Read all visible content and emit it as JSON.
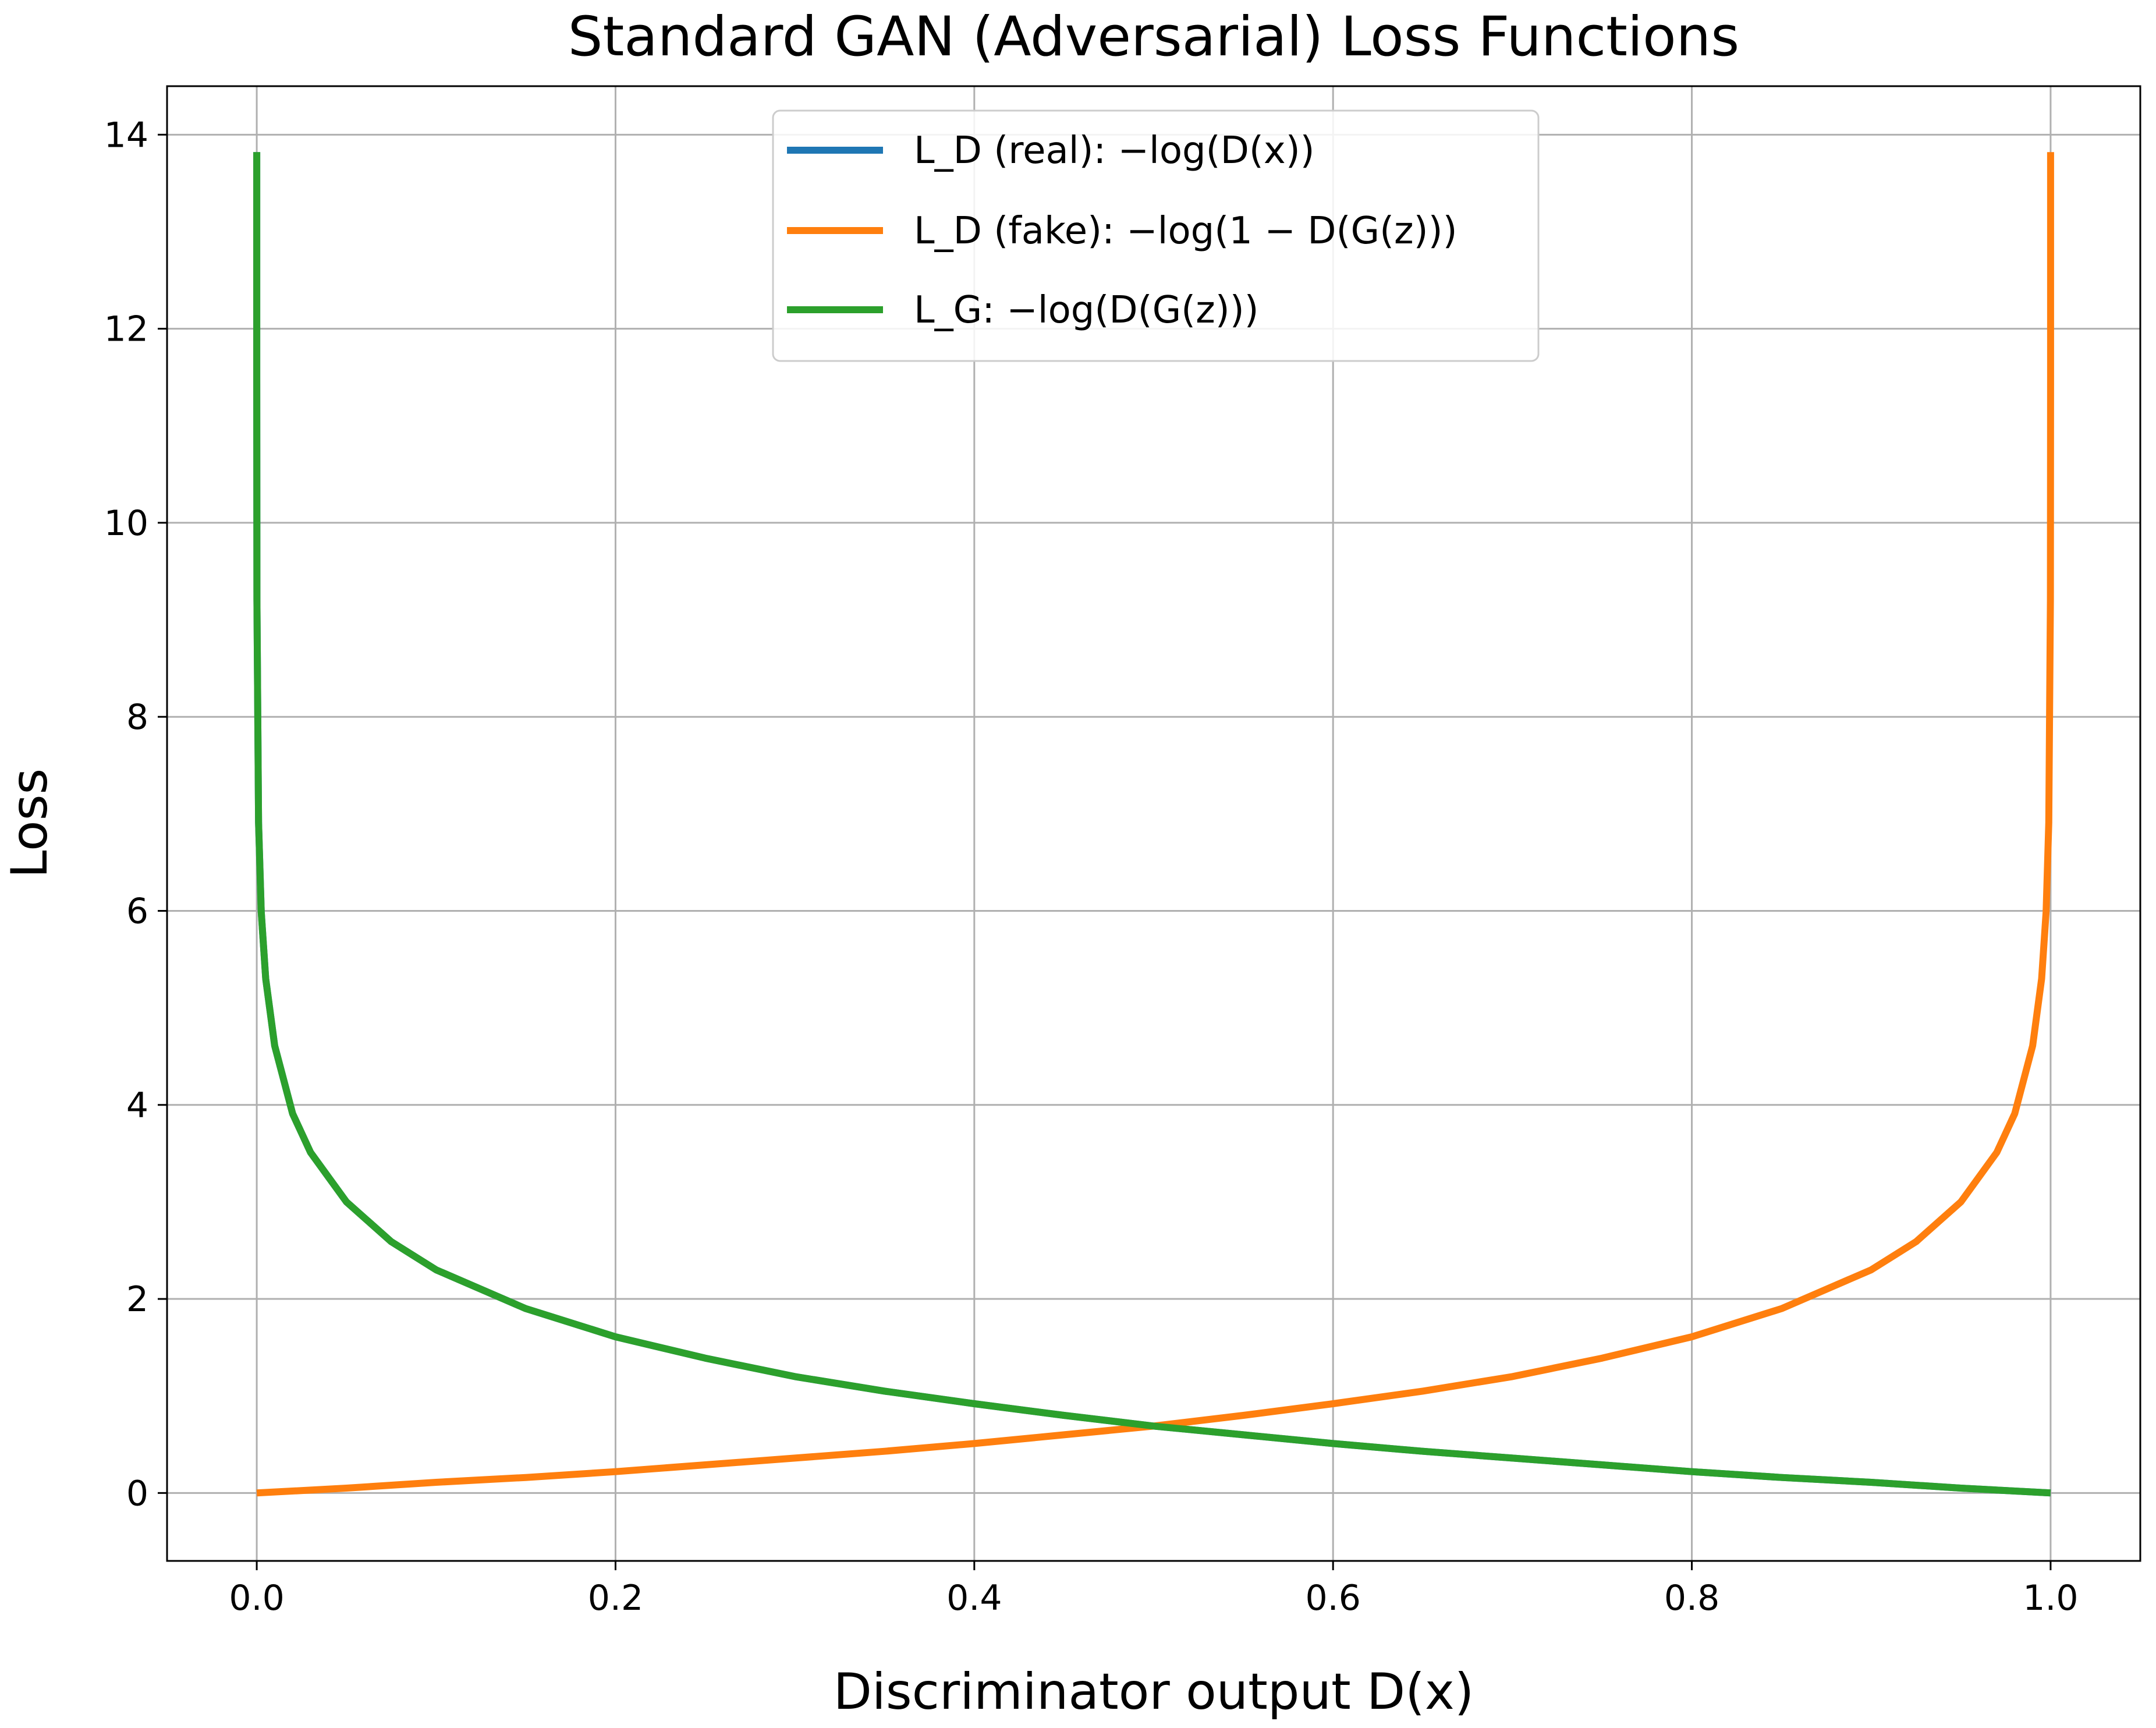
{
  "chart_data": {
    "type": "line",
    "title": "Standard GAN (Adversarial) Loss Functions",
    "xlabel": "Discriminator output D(x)",
    "ylabel": "Loss",
    "xlim": [
      -0.05,
      1.05
    ],
    "ylim": [
      -0.7,
      14.5
    ],
    "x_ticks": [
      "0.0",
      "0.2",
      "0.4",
      "0.6",
      "0.8",
      "1.0"
    ],
    "y_ticks": [
      "0",
      "2",
      "4",
      "6",
      "8",
      "10",
      "12",
      "14"
    ],
    "grid": true,
    "legend_position": "top-center",
    "series": [
      {
        "name": "L_D (real): −log(D(x))",
        "color": "#1f77b4",
        "x": [
          1e-06,
          1e-05,
          0.0001,
          0.001,
          0.0025,
          0.005,
          0.01,
          0.02,
          0.03,
          0.05,
          0.075,
          0.1,
          0.15,
          0.2,
          0.25,
          0.3,
          0.35,
          0.4,
          0.45,
          0.5,
          0.55,
          0.6,
          0.65,
          0.7,
          0.75,
          0.8,
          0.85,
          0.9,
          0.95,
          0.999999
        ],
        "y": [
          13.82,
          11.51,
          9.21,
          6.91,
          5.99,
          5.3,
          4.61,
          3.91,
          3.51,
          3.0,
          2.59,
          2.3,
          1.9,
          1.61,
          1.39,
          1.2,
          1.05,
          0.92,
          0.8,
          0.69,
          0.6,
          0.51,
          0.43,
          0.36,
          0.29,
          0.22,
          0.16,
          0.11,
          0.05,
          0.0
        ]
      },
      {
        "name": "L_D (fake): −log(1 − D(G(z)))",
        "color": "#ff7f0e",
        "x": [
          1e-06,
          0.05,
          0.1,
          0.15,
          0.2,
          0.25,
          0.3,
          0.35,
          0.4,
          0.45,
          0.5,
          0.55,
          0.6,
          0.65,
          0.7,
          0.75,
          0.8,
          0.85,
          0.9,
          0.925,
          0.95,
          0.97,
          0.98,
          0.99,
          0.995,
          0.9975,
          0.999,
          0.9999,
          0.99999,
          0.999999
        ],
        "y": [
          0.0,
          0.05,
          0.11,
          0.16,
          0.22,
          0.29,
          0.36,
          0.43,
          0.51,
          0.6,
          0.69,
          0.8,
          0.92,
          1.05,
          1.2,
          1.39,
          1.61,
          1.9,
          2.3,
          2.59,
          3.0,
          3.51,
          3.91,
          4.61,
          5.3,
          5.99,
          6.91,
          9.21,
          11.51,
          13.82
        ]
      },
      {
        "name": "L_G: −log(D(G(z)))",
        "color": "#2ca02c",
        "x": [
          1e-06,
          1e-05,
          0.0001,
          0.001,
          0.0025,
          0.005,
          0.01,
          0.02,
          0.03,
          0.05,
          0.075,
          0.1,
          0.15,
          0.2,
          0.25,
          0.3,
          0.35,
          0.4,
          0.45,
          0.5,
          0.55,
          0.6,
          0.65,
          0.7,
          0.75,
          0.8,
          0.85,
          0.9,
          0.95,
          0.999999
        ],
        "y": [
          13.82,
          11.51,
          9.21,
          6.91,
          5.99,
          5.3,
          4.61,
          3.91,
          3.51,
          3.0,
          2.59,
          2.3,
          1.9,
          1.61,
          1.39,
          1.2,
          1.05,
          0.92,
          0.8,
          0.69,
          0.6,
          0.51,
          0.43,
          0.36,
          0.29,
          0.22,
          0.16,
          0.11,
          0.05,
          0.0
        ]
      }
    ]
  }
}
